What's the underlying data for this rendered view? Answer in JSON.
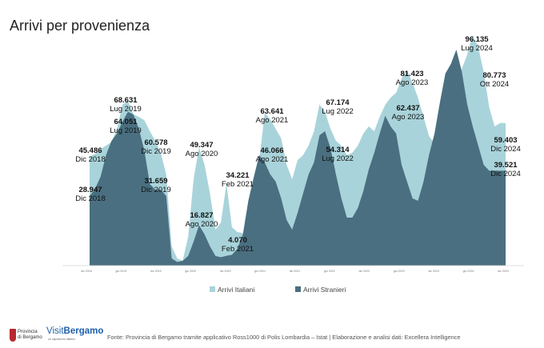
{
  "title": "Arrivi per provenienza",
  "colors": {
    "italiani": "#a9d3da",
    "stranieri": "#4a6f80"
  },
  "chart_data": {
    "type": "area",
    "title": "Arrivi per provenienza",
    "xlabel": "",
    "ylabel": "",
    "ylim": [
      0,
      100000
    ],
    "x_tick_labels": [
      "dic 2018",
      "giu 2019",
      "dic 2019",
      "giu 2020",
      "dic 2020",
      "giu 2021",
      "dic 2021",
      "giu 2022",
      "dic 2022",
      "giu 2023",
      "dic 2023",
      "giu 2024",
      "dic 2024"
    ],
    "series": [
      {
        "name": "Arrivi Italiani",
        "values": [
          45486,
          46500,
          48500,
          50000,
          51500,
          57000,
          67000,
          68631,
          63000,
          62000,
          60578,
          56000,
          52000,
          47000,
          38000,
          8000,
          3000,
          2000,
          12000,
          36000,
          49347,
          42000,
          30000,
          15000,
          18000,
          34221,
          16000,
          14000,
          13500,
          18000,
          26000,
          44000,
          63641,
          61000,
          57000,
          53000,
          42000,
          36000,
          44000,
          46000,
          50000,
          56000,
          67174,
          64000,
          57000,
          52000,
          50000,
          46000,
          47000,
          50000,
          55000,
          58000,
          56000,
          62000,
          67000,
          70000,
          72000,
          78000,
          81423,
          76000,
          70000,
          62000,
          54000,
          51000,
          52000,
          55000,
          63000,
          75000,
          82000,
          88000,
          96135,
          91000,
          80773,
          66000,
          58000,
          59403,
          59403
        ]
      },
      {
        "name": "Arrivi Stranieri",
        "values": [
          28947,
          32000,
          37000,
          46000,
          52000,
          55000,
          60000,
          64051,
          63000,
          57000,
          48000,
          34000,
          31659,
          31659,
          29000,
          3000,
          1500,
          2000,
          4000,
          10000,
          16827,
          13000,
          8000,
          4000,
          3500,
          4070,
          4500,
          7000,
          13000,
          27000,
          37000,
          46066,
          43000,
          38000,
          35000,
          28000,
          19000,
          15000,
          22000,
          30000,
          38000,
          43000,
          54314,
          56000,
          49000,
          38000,
          28000,
          20000,
          20000,
          24000,
          31000,
          40000,
          47000,
          55000,
          62437,
          58000,
          55000,
          42000,
          35000,
          28000,
          27000,
          35000,
          46000,
          55000,
          68000,
          80000,
          84000,
          90000,
          80773,
          67000,
          58000,
          50000,
          42000,
          39521,
          39521,
          39521,
          39521
        ]
      }
    ],
    "annotations": [
      {
        "series": "Arrivi Italiani",
        "value": "45.486",
        "date": "Dic 2018"
      },
      {
        "series": "Arrivi Stranieri",
        "value": "28.947",
        "date": "Dic 2018"
      },
      {
        "series": "Arrivi Italiani",
        "value": "68.631",
        "date": "Lug 2019"
      },
      {
        "series": "Arrivi Stranieri",
        "value": "64.051",
        "date": "Lug 2019"
      },
      {
        "series": "Arrivi Italiani",
        "value": "60.578",
        "date": "Dic 2019"
      },
      {
        "series": "Arrivi Stranieri",
        "value": "31.659",
        "date": "Dic 2019"
      },
      {
        "series": "Arrivi Italiani",
        "value": "49.347",
        "date": "Ago 2020"
      },
      {
        "series": "Arrivi Stranieri",
        "value": "16.827",
        "date": "Ago 2020"
      },
      {
        "series": "Arrivi Italiani",
        "value": "34.221",
        "date": "Feb 2021"
      },
      {
        "series": "Arrivi Stranieri",
        "value": "4.070",
        "date": "Feb 2021"
      },
      {
        "series": "Arrivi Italiani",
        "value": "63.641",
        "date": "Ago 2021"
      },
      {
        "series": "Arrivi Stranieri",
        "value": "46.066",
        "date": "Ago 2021"
      },
      {
        "series": "Arrivi Italiani",
        "value": "67.174",
        "date": "Lug 2022"
      },
      {
        "series": "Arrivi Stranieri",
        "value": "54.314",
        "date": "Lug 2022"
      },
      {
        "series": "Arrivi Italiani",
        "value": "81.423",
        "date": "Ago 2023"
      },
      {
        "series": "Arrivi Stranieri",
        "value": "62.437",
        "date": "Ago 2023"
      },
      {
        "series": "Arrivi Italiani",
        "value": "96.135",
        "date": "Lug 2024"
      },
      {
        "series": "Arrivi Stranieri",
        "value": "80.773",
        "date": "Ott 2024"
      },
      {
        "series": "Arrivi Italiani",
        "value": "59.403",
        "date": "Dic 2024"
      },
      {
        "series": "Arrivi Stranieri",
        "value": "39.521",
        "date": "Dic 2024"
      }
    ],
    "legend": [
      "Arrivi Italiani",
      "Arrivi Stranieri"
    ],
    "legend_position": "bottom"
  },
  "footer": {
    "logo_province_line1": "Provincia",
    "logo_province_line2": "di Bergamo",
    "logo_visit": "Visit",
    "logo_bergamo": "Bergamo",
    "logo_tagline": "un capolavoro italiano",
    "source": "Fonte: Provincia di Bergamo tramite applicativo Ross1000 di Polis Lombardia – Istat | Elaborazione e analisi dati: Excellera Intelligence"
  }
}
